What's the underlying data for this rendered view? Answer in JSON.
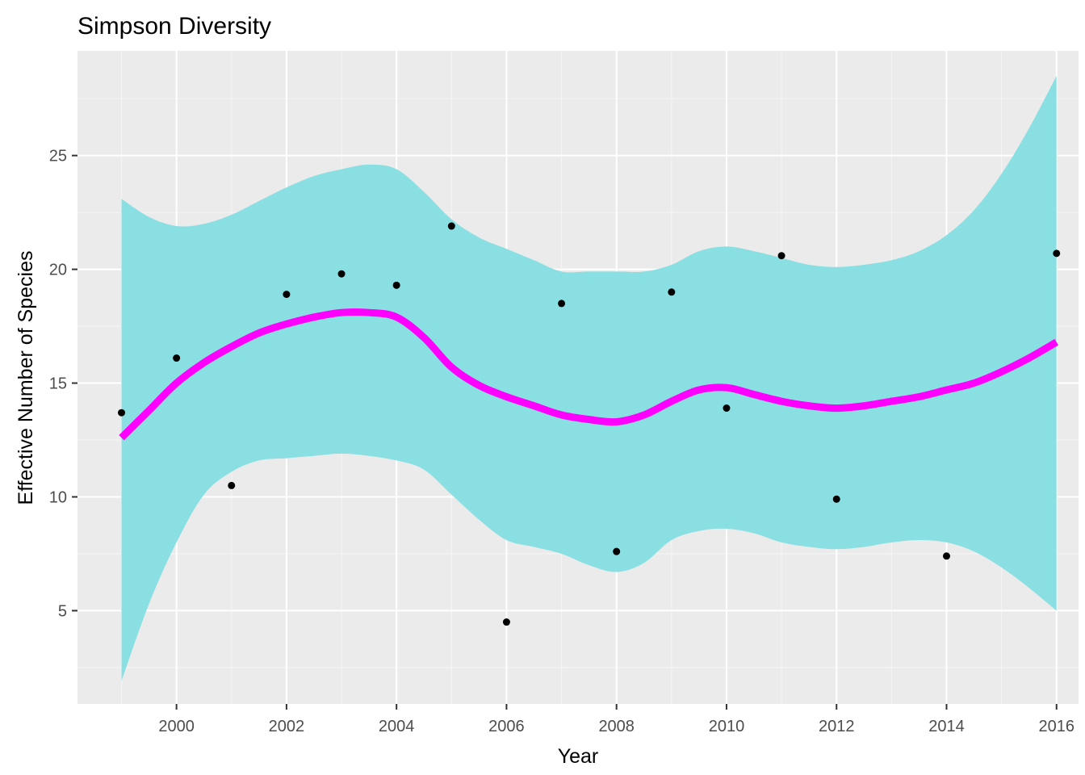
{
  "chart_data": {
    "type": "scatter",
    "title": "Simpson Diversity",
    "xlabel": "Year",
    "ylabel": "Effective Number of Species",
    "xlim": [
      1998.2,
      2016.4
    ],
    "ylim": [
      0.9,
      29.6
    ],
    "x_ticks": [
      2000,
      2002,
      2004,
      2006,
      2008,
      2010,
      2012,
      2014,
      2016
    ],
    "x_tick_labels": [
      "2000",
      "2002",
      "2004",
      "2006",
      "2008",
      "2010",
      "2012",
      "2014",
      "2016"
    ],
    "y_ticks": [
      5,
      10,
      15,
      20,
      25
    ],
    "y_tick_labels": [
      "5",
      "10",
      "15",
      "20",
      "25"
    ],
    "grid": true,
    "legend": "none",
    "points": [
      {
        "x": 1999,
        "y": 13.7
      },
      {
        "x": 2000,
        "y": 16.1
      },
      {
        "x": 2001,
        "y": 10.5
      },
      {
        "x": 2002,
        "y": 18.9
      },
      {
        "x": 2003,
        "y": 19.8
      },
      {
        "x": 2004,
        "y": 19.3
      },
      {
        "x": 2005,
        "y": 21.9
      },
      {
        "x": 2006,
        "y": 4.5
      },
      {
        "x": 2007,
        "y": 18.5
      },
      {
        "x": 2008,
        "y": 7.6
      },
      {
        "x": 2009,
        "y": 19.0
      },
      {
        "x": 2010,
        "y": 13.9
      },
      {
        "x": 2011,
        "y": 20.6
      },
      {
        "x": 2012,
        "y": 9.9
      },
      {
        "x": 2014,
        "y": 7.4
      },
      {
        "x": 2016,
        "y": 20.7
      }
    ],
    "smooth": {
      "x": [
        1999,
        1999.5,
        2000,
        2000.5,
        2001,
        2001.5,
        2002,
        2002.5,
        2003,
        2003.5,
        2004,
        2004.5,
        2005,
        2005.5,
        2006,
        2006.5,
        2007,
        2007.5,
        2008,
        2008.5,
        2009,
        2009.5,
        2010,
        2010.5,
        2011,
        2011.5,
        2012,
        2012.5,
        2013,
        2013.5,
        2014,
        2014.5,
        2015,
        2015.5,
        2016
      ],
      "y": [
        12.6,
        13.8,
        15.0,
        15.9,
        16.6,
        17.2,
        17.6,
        17.9,
        18.1,
        18.1,
        17.9,
        17.0,
        15.7,
        14.9,
        14.4,
        14.0,
        13.6,
        13.4,
        13.3,
        13.6,
        14.2,
        14.7,
        14.8,
        14.5,
        14.2,
        14.0,
        13.9,
        14.0,
        14.2,
        14.4,
        14.7,
        15.0,
        15.5,
        16.1,
        16.8
      ],
      "upper": [
        23.1,
        22.3,
        21.9,
        22.0,
        22.4,
        23.0,
        23.6,
        24.1,
        24.4,
        24.6,
        24.4,
        23.4,
        22.2,
        21.4,
        20.9,
        20.4,
        19.9,
        19.9,
        19.9,
        19.9,
        20.2,
        20.8,
        21.0,
        20.8,
        20.5,
        20.2,
        20.1,
        20.2,
        20.4,
        20.8,
        21.5,
        22.6,
        24.2,
        26.2,
        28.5
      ],
      "lower": [
        1.9,
        5.3,
        8.0,
        10.1,
        11.1,
        11.6,
        11.7,
        11.8,
        11.9,
        11.8,
        11.6,
        11.2,
        10.1,
        9.0,
        8.1,
        7.8,
        7.5,
        7.0,
        6.7,
        7.1,
        8.1,
        8.5,
        8.6,
        8.4,
        8.0,
        7.8,
        7.7,
        7.8,
        8.0,
        8.1,
        8.0,
        7.6,
        6.9,
        6.0,
        5.0
      ]
    },
    "colors": {
      "panel": "#EBEBEB",
      "grid_major": "#FFFFFF",
      "grid_minor": "#F5F5F5",
      "ribbon": "#8ADFE3",
      "line": "#FF00FF",
      "point": "#000000",
      "tick": "#333333"
    }
  }
}
